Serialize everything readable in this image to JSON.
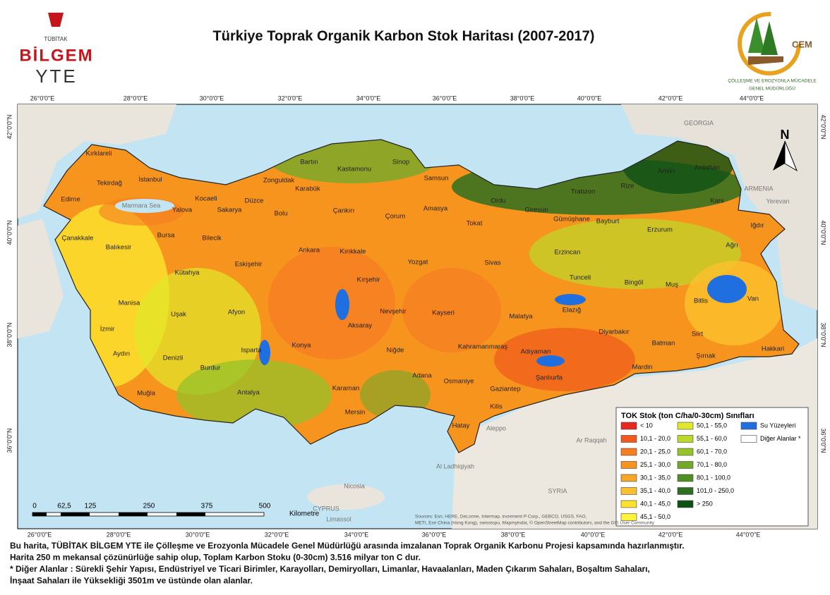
{
  "header": {
    "title": "Türkiye Toprak Organik Karbon Stok Haritası (2007-2017)",
    "left_logo": {
      "org": "TÜBİTAK",
      "name": "BİLGEM",
      "unit": "YTE"
    },
    "right_logo": {
      "name": "CEM",
      "caption_1": "ÇÖLLEŞME VE EROZYONLA MÜCADELE",
      "caption_2": "GENEL MÜDÜRLÜĞÜ"
    }
  },
  "map": {
    "longitudes": [
      "26°0'0\"E",
      "28°0'0\"E",
      "30°0'0\"E",
      "32°0'0\"E",
      "34°0'0\"E",
      "36°0'0\"E",
      "38°0'0\"E",
      "40°0'0\"E",
      "42°0'0\"E",
      "44°0'0\"E"
    ],
    "latitudes": [
      "42°0'0\"N",
      "40°0'0\"N",
      "38°0'0\"N",
      "36°0'0\"N"
    ],
    "north": "N",
    "provinces": [
      "Kırklareli",
      "Edirne",
      "Tekirdağ",
      "İstanbul",
      "Kocaeli",
      "Sakarya",
      "Düzce",
      "Zonguldak",
      "Bartın",
      "Karabük",
      "Kastamonu",
      "Sinop",
      "Samsun",
      "Bolu",
      "Çankırı",
      "Çorum",
      "Amasya",
      "Tokat",
      "Ordu",
      "Giresun",
      "Trabzon",
      "Rize",
      "Artvin",
      "Ardahan",
      "Kars",
      "Iğdır",
      "Ağrı",
      "Erzurum",
      "Bayburt",
      "Gümüşhane",
      "Erzincan",
      "Tunceli",
      "Bingöl",
      "Muş",
      "Bitlis",
      "Van",
      "Elazığ",
      "Malatya",
      "Sivas",
      "Yozgat",
      "Kırıkkale",
      "Ankara",
      "Kırşehir",
      "Nevşehir",
      "Kayseri",
      "Aksaray",
      "Niğde",
      "Konya",
      "Karaman",
      "Mersin",
      "Adana",
      "Osmaniye",
      "Hatay",
      "Gaziantep",
      "Kilis",
      "Kahramanmaraş",
      "Adıyaman",
      "Şanlıurfa",
      "Diyarbakır",
      "Batman",
      "Siirt",
      "Şırnak",
      "Hakkari",
      "Mardin",
      "Eskişehir",
      "Bilecik",
      "Bursa",
      "Yalova",
      "Balıkesir",
      "Çanakkale",
      "Kütahya",
      "Manisa",
      "İzmir",
      "Aydın",
      "Uşak",
      "Afyon",
      "Denizli",
      "Muğla",
      "Burdur",
      "Isparta",
      "Antalya"
    ],
    "places": [
      "GEORGIA",
      "ARMENIA",
      "Yerevan",
      "Aleppo",
      "Ar Raqqah",
      "Al Ladhiqiyah",
      "SYRIA",
      "Nicosia",
      "CYPRUS",
      "Limassol",
      "Marmara Sea"
    ],
    "sources_1": "Sources: Esri, HERE, DeLorme, Intermap, increment P Corp., GEBCO, USGS, FAO,",
    "sources_2": "METI, Esri China (Hong Kong), swisstopo, Mapmyindia, © OpenStreetMap contributors, and the GIS User Community"
  },
  "legend": {
    "title": "TOK Stok (ton C/ha/0-30cm) Sınıfları",
    "classes": [
      {
        "label": "< 10",
        "color": "#e8281e"
      },
      {
        "label": "10,1 - 20,0",
        "color": "#f05a1e"
      },
      {
        "label": "20,1 - 25,0",
        "color": "#f57d23"
      },
      {
        "label": "25,1 - 30,0",
        "color": "#f7941d"
      },
      {
        "label": "30,1 - 35,0",
        "color": "#f9a825"
      },
      {
        "label": "35,1 - 40,0",
        "color": "#fbc02d"
      },
      {
        "label": "40,1 - 45,0",
        "color": "#fde12d"
      },
      {
        "label": "45,1 - 50,0",
        "color": "#fff23a"
      },
      {
        "label": "50,1 - 55,0",
        "color": "#dfe82a"
      },
      {
        "label": "55,1 - 60,0",
        "color": "#bcd82a"
      },
      {
        "label": "60,1 - 70,0",
        "color": "#96c22a"
      },
      {
        "label": "70,1 - 80,0",
        "color": "#73a92a"
      },
      {
        "label": "80,1 - 100,0",
        "color": "#4f8f24"
      },
      {
        "label": "101,0 - 250,0",
        "color": "#2f7020"
      },
      {
        "label": "> 250",
        "color": "#0f5014"
      },
      {
        "label": "Su Yüzeyleri",
        "color": "#1f6fe0"
      },
      {
        "label": "Diğer Alanlar *",
        "color": "#ffffff"
      }
    ]
  },
  "scale_bar": {
    "labels": [
      "0",
      "62,5",
      "125",
      "250",
      "375",
      "500"
    ],
    "unit": "Kilometre"
  },
  "footer": {
    "lines": [
      "Bu harita, TÜBİTAK BİLGEM YTE ile Çölleşme ve Erozyonla Mücadele Genel Müdürlüğü arasında imzalanan Toprak Organik Karbonu Projesi kapsamında hazırlanmıştır.",
      "Harita 250 m mekansal çözünürlüğe sahip olup, Toplam Karbon Stoku (0-30cm) 3.516 milyar ton C dur.",
      "* Diğer Alanlar :  Sürekli Şehir Yapısı, Endüstriyel ve Ticari Birimler, Karayolları, Demiryolları, Limanlar, Havaalanları, Maden Çıkarım Sahaları, Boşaltım Sahaları,",
      "İnşaat Sahaları ile Yüksekliği 3501m ve üstünde olan alanlar."
    ]
  }
}
